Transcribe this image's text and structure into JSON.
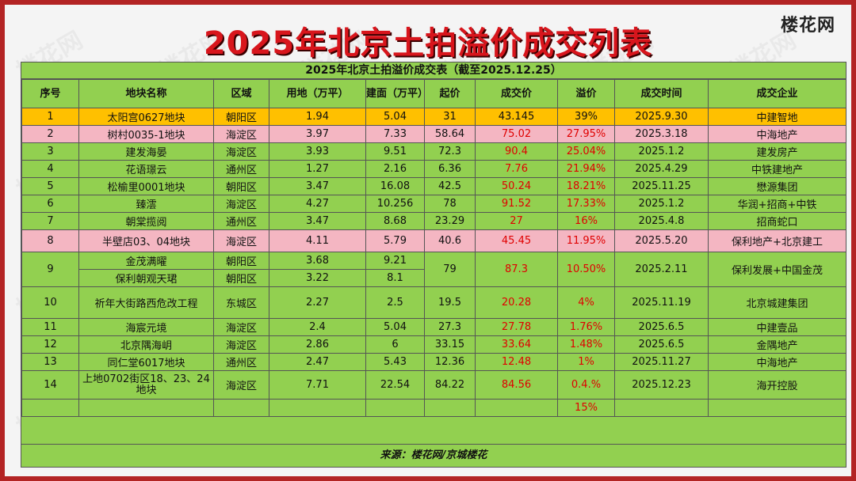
{
  "title": "2025年北京土拍溢价成交列表",
  "logo": "楼花网",
  "watermark": "楼花网",
  "table": {
    "caption": "2025年北京土拍溢价成交表（截至2025.12.25）",
    "headers": [
      "序号",
      "地块名称",
      "区域",
      "用地（万平）",
      "建面（万平）",
      "起价",
      "成交价",
      "溢价",
      "成交时间",
      "成交企业"
    ],
    "rows": [
      {
        "no": "1",
        "name": "太阳宫0627地块",
        "area": "朝阳区",
        "land": "1.94",
        "build": "5.04",
        "start": "31",
        "deal": "43.145",
        "premium": "39%",
        "date": "2025.9.30",
        "company": "中建智地"
      },
      {
        "no": "2",
        "name": "树村0035-1地块",
        "area": "海淀区",
        "land": "3.97",
        "build": "7.33",
        "start": "58.64",
        "deal": "75.02",
        "premium": "27.95%",
        "date": "2025.3.18",
        "company": "中海地产"
      },
      {
        "no": "3",
        "name": "建发海晏",
        "area": "海淀区",
        "land": "3.93",
        "build": "9.51",
        "start": "72.3",
        "deal": "90.4",
        "premium": "25.04%",
        "date": "2025.1.2",
        "company": "建发房产"
      },
      {
        "no": "4",
        "name": "花语璟云",
        "area": "通州区",
        "land": "1.27",
        "build": "2.16",
        "start": "6.36",
        "deal": "7.76",
        "premium": "21.94%",
        "date": "2025.4.29",
        "company": "中铁建地产"
      },
      {
        "no": "5",
        "name": "松榆里0001地块",
        "area": "朝阳区",
        "land": "3.47",
        "build": "16.08",
        "start": "42.5",
        "deal": "50.24",
        "premium": "18.21%",
        "date": "2025.11.25",
        "company": "懋源集团"
      },
      {
        "no": "6",
        "name": "臻澐",
        "area": "海淀区",
        "land": "4.27",
        "build": "10.256",
        "start": "78",
        "deal": "91.52",
        "premium": "17.33%",
        "date": "2025.1.2",
        "company": "华润+招商+中铁"
      },
      {
        "no": "7",
        "name": "朝棠揽阅",
        "area": "通州区",
        "land": "3.47",
        "build": "8.68",
        "start": "23.29",
        "deal": "27",
        "premium": "16%",
        "date": "2025.4.8",
        "company": "招商蛇口"
      },
      {
        "no": "8",
        "name": "半壁店03、04地块",
        "area": "海淀区",
        "land": "4.11",
        "build": "5.79",
        "start": "40.6",
        "deal": "45.45",
        "premium": "11.95%",
        "date": "2025.5.20",
        "company": "保利地产+北京建工"
      },
      {
        "no": "9",
        "name_a": "金茂满曜",
        "area_a": "朝阳区",
        "land_a": "3.68",
        "build_a": "9.21",
        "name_b": "保利朝观天珺",
        "area_b": "朝阳区",
        "land_b": "3.22",
        "build_b": "8.1",
        "start": "79",
        "deal": "87.3",
        "premium": "10.50%",
        "date": "2025.2.11",
        "company": "保利发展+中国金茂"
      },
      {
        "no": "10",
        "name": "祈年大街路西危改工程",
        "area": "东城区",
        "land": "2.27",
        "build": "2.5",
        "start": "19.5",
        "deal": "20.28",
        "premium": "4%",
        "date": "2025.11.19",
        "company": "北京城建集团"
      },
      {
        "no": "11",
        "name": "海宸元境",
        "area": "海淀区",
        "land": "2.4",
        "build": "5.04",
        "start": "27.3",
        "deal": "27.78",
        "premium": "1.76%",
        "date": "2025.6.5",
        "company": "中建壹品"
      },
      {
        "no": "12",
        "name": "北京隅海岄",
        "area": "海淀区",
        "land": "2.86",
        "build": "6",
        "start": "33.15",
        "deal": "33.64",
        "premium": "1.48%",
        "date": "2025.6.5",
        "company": "金隅地产"
      },
      {
        "no": "13",
        "name": "同仁堂6017地块",
        "area": "通州区",
        "land": "2.47",
        "build": "5.43",
        "start": "12.36",
        "deal": "12.48",
        "premium": "1%",
        "date": "2025.11.27",
        "company": "中海地产"
      },
      {
        "no": "14",
        "name": "上地0702街区18、23、24地块",
        "area": "海淀区",
        "land": "7.71",
        "build": "22.54",
        "start": "84.22",
        "deal": "84.56",
        "premium": "0.4.%",
        "date": "2025.12.23",
        "company": "海开控股"
      }
    ],
    "avg_premium": "15%",
    "source": "来源：楼花网/京城楼花"
  }
}
